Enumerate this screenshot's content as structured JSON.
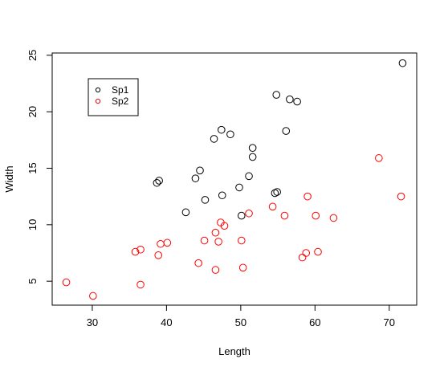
{
  "chart_data": {
    "type": "scatter",
    "title": "",
    "xlabel": "Length",
    "ylabel": "Width",
    "xlim": [
      24.6,
      73.7
    ],
    "ylim": [
      2.88,
      25.2
    ],
    "xticks": [
      30,
      40,
      50,
      60,
      70
    ],
    "yticks": [
      5,
      10,
      15,
      20,
      25
    ],
    "grid": false,
    "legend": {
      "position": "top-left",
      "marker": "circle"
    },
    "series": [
      {
        "name": "Sp1",
        "color": "#000000",
        "points": [
          [
            71.8,
            24.3
          ],
          [
            54.8,
            21.5
          ],
          [
            56.6,
            21.1
          ],
          [
            57.6,
            20.9
          ],
          [
            47.4,
            18.4
          ],
          [
            48.6,
            18.0
          ],
          [
            56.1,
            18.3
          ],
          [
            46.4,
            17.6
          ],
          [
            51.6,
            16.8
          ],
          [
            51.6,
            16.0
          ],
          [
            44.5,
            14.8
          ],
          [
            43.9,
            14.1
          ],
          [
            51.1,
            14.3
          ],
          [
            39.0,
            13.9
          ],
          [
            38.7,
            13.7
          ],
          [
            49.8,
            13.3
          ],
          [
            54.9,
            12.9
          ],
          [
            54.6,
            12.8
          ],
          [
            45.2,
            12.2
          ],
          [
            47.5,
            12.6
          ],
          [
            42.6,
            11.1
          ],
          [
            50.1,
            10.8
          ]
        ]
      },
      {
        "name": "Sp2",
        "color": "#ff0000",
        "points": [
          [
            68.6,
            15.9
          ],
          [
            71.6,
            12.5
          ],
          [
            59.0,
            12.5
          ],
          [
            54.3,
            11.6
          ],
          [
            51.1,
            11.0
          ],
          [
            55.9,
            10.8
          ],
          [
            60.1,
            10.8
          ],
          [
            62.5,
            10.6
          ],
          [
            47.3,
            10.2
          ],
          [
            47.8,
            9.9
          ],
          [
            46.6,
            9.3
          ],
          [
            45.1,
            8.6
          ],
          [
            47.0,
            8.5
          ],
          [
            50.1,
            8.6
          ],
          [
            39.2,
            8.3
          ],
          [
            40.1,
            8.4
          ],
          [
            35.8,
            7.6
          ],
          [
            36.5,
            7.8
          ],
          [
            38.9,
            7.3
          ],
          [
            58.8,
            7.5
          ],
          [
            60.4,
            7.6
          ],
          [
            58.3,
            7.1
          ],
          [
            44.3,
            6.6
          ],
          [
            46.6,
            6.0
          ],
          [
            50.3,
            6.2
          ],
          [
            26.5,
            4.9
          ],
          [
            36.5,
            4.7
          ],
          [
            30.1,
            3.7
          ]
        ]
      }
    ]
  }
}
